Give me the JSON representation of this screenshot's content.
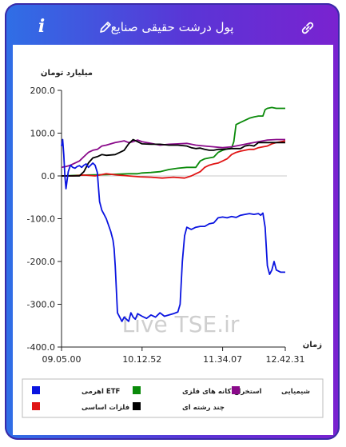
{
  "header": {
    "title": "پول درشت حقیقی صنایع",
    "info_icon_text": "i",
    "icons": [
      "info-icon",
      "pencil-icon",
      "link-icon"
    ]
  },
  "watermark": "Live TSE.ir",
  "chart_data": {
    "type": "line",
    "title": "",
    "ylabel": "میلیارد تومان",
    "xlabel": "زمان",
    "ylim": [
      -400,
      200
    ],
    "yticks": [
      "200.0",
      "100.0",
      "0.0",
      "-100.0",
      "-200.0",
      "-300.0",
      "-400.0"
    ],
    "yticks_values": [
      200,
      100,
      0,
      -100,
      -200,
      -300,
      -400
    ],
    "xlim": [
      0,
      100
    ],
    "xticks": [
      "09.05.00",
      "10.12.52",
      "11.34.07",
      "12.42.31"
    ],
    "xticks_values": [
      0,
      36,
      72,
      100
    ],
    "grid": false,
    "legend_position": "bottom",
    "series": [
      {
        "name": "ETF اهرمی",
        "color": "#0a14e0",
        "x": [
          0,
          0.5,
          1,
          1.5,
          2,
          3,
          4,
          5,
          6,
          7,
          8,
          9,
          10,
          11,
          12,
          13,
          14,
          15,
          16,
          17,
          18,
          19,
          20,
          21,
          22,
          23,
          23.5,
          24,
          25,
          26,
          27,
          28,
          29,
          30,
          31,
          32,
          33,
          34,
          35,
          36,
          38,
          40,
          42,
          44,
          46,
          48,
          50,
          52,
          53,
          54,
          55,
          56,
          58,
          60,
          62,
          64,
          66,
          68,
          70,
          72,
          74,
          76,
          78,
          80,
          82,
          84,
          86,
          88,
          89,
          90,
          91,
          92,
          93,
          94,
          95,
          96,
          98,
          100
        ],
        "y": [
          70,
          85,
          50,
          0,
          -30,
          10,
          25,
          20,
          18,
          22,
          24,
          20,
          25,
          28,
          20,
          25,
          30,
          25,
          8,
          -60,
          -80,
          -90,
          -100,
          -115,
          -130,
          -150,
          -170,
          -210,
          -320,
          -330,
          -340,
          -330,
          -335,
          -340,
          -320,
          -330,
          -335,
          -322,
          -325,
          -328,
          -333,
          -325,
          -330,
          -320,
          -328,
          -325,
          -322,
          -318,
          -300,
          -200,
          -140,
          -120,
          -125,
          -120,
          -118,
          -118,
          -112,
          -110,
          -98,
          -96,
          -98,
          -95,
          -97,
          -92,
          -90,
          -88,
          -90,
          -88,
          -92,
          -87,
          -120,
          -210,
          -230,
          -220,
          -200,
          -220,
          -225,
          -225
        ]
      },
      {
        "name": "استخراج کانه های فلزی",
        "color": "#0a8a0a",
        "x": [
          0,
          10,
          20,
          30,
          34,
          36,
          40,
          44,
          48,
          52,
          56,
          60,
          62,
          64,
          66,
          68,
          70,
          72,
          74,
          76,
          77,
          78,
          80,
          82,
          84,
          86,
          88,
          90,
          91,
          92,
          94,
          96,
          98,
          100
        ],
        "y": [
          0,
          2,
          3,
          5,
          5,
          7,
          8,
          10,
          15,
          18,
          20,
          20,
          35,
          40,
          42,
          44,
          55,
          60,
          63,
          65,
          80,
          120,
          125,
          130,
          135,
          138,
          140,
          140,
          155,
          158,
          160,
          158,
          158,
          158
        ]
      },
      {
        "name": "شیمیایی",
        "color": "#8a0a8a",
        "x": [
          0,
          2,
          4,
          6,
          8,
          10,
          12,
          14,
          16,
          18,
          20,
          22,
          24,
          26,
          28,
          30,
          32,
          34,
          36,
          38,
          40,
          44,
          48,
          52,
          56,
          60,
          64,
          68,
          72,
          76,
          80,
          84,
          88,
          92,
          96,
          100
        ],
        "y": [
          20,
          22,
          25,
          30,
          35,
          45,
          55,
          60,
          62,
          70,
          72,
          75,
          78,
          80,
          82,
          78,
          80,
          84,
          80,
          78,
          76,
          72,
          74,
          75,
          76,
          72,
          70,
          68,
          66,
          68,
          72,
          76,
          80,
          84,
          85,
          85
        ]
      },
      {
        "name": "فلزات اساسی",
        "color": "#e01414",
        "x": [
          0,
          5,
          10,
          15,
          20,
          25,
          30,
          35,
          40,
          45,
          50,
          55,
          58,
          60,
          62,
          64,
          66,
          68,
          70,
          72,
          74,
          76,
          78,
          80,
          82,
          84,
          86,
          88,
          90,
          92,
          94,
          96,
          98,
          100
        ],
        "y": [
          0,
          0,
          2,
          0,
          5,
          2,
          0,
          -2,
          -3,
          -5,
          -3,
          -5,
          0,
          5,
          10,
          20,
          25,
          28,
          30,
          35,
          40,
          50,
          55,
          58,
          60,
          62,
          62,
          66,
          68,
          70,
          75,
          78,
          80,
          82
        ]
      },
      {
        "name": "چند رشته ای",
        "color": "#000000",
        "x": [
          0,
          4,
          8,
          10,
          12,
          14,
          16,
          18,
          20,
          24,
          28,
          30,
          32,
          34,
          36,
          40,
          44,
          48,
          52,
          56,
          58,
          60,
          62,
          64,
          66,
          68,
          70,
          72,
          76,
          80,
          82,
          84,
          86,
          88,
          90,
          94,
          100
        ],
        "y": [
          0,
          0,
          0,
          10,
          30,
          42,
          45,
          50,
          48,
          50,
          60,
          75,
          85,
          80,
          75,
          74,
          74,
          72,
          72,
          70,
          66,
          64,
          65,
          62,
          60,
          60,
          62,
          62,
          64,
          64,
          70,
          72,
          70,
          78,
          78,
          78,
          78
        ]
      }
    ]
  }
}
